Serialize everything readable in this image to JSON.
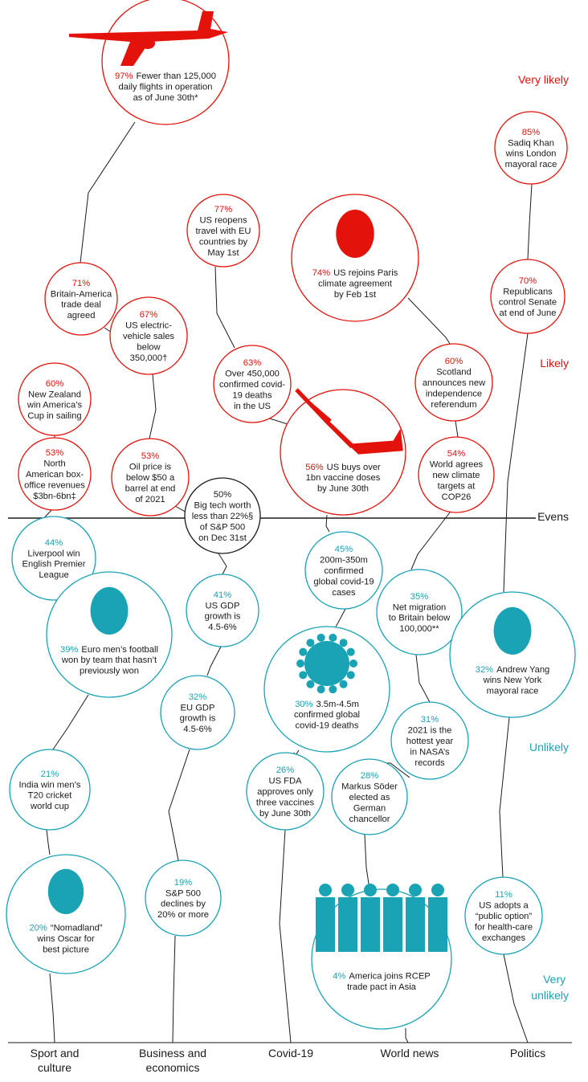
{
  "scale_labels": {
    "very_likely": "Very likely",
    "likely": "Likely",
    "evens": "Evens",
    "unlikely": "Unlikely",
    "very_unlikely": [
      "Very",
      "unlikely"
    ]
  },
  "categories": [
    [
      "Sport and",
      "culture"
    ],
    [
      "Business and",
      "economics"
    ],
    [
      "Covid-19"
    ],
    [
      "World news"
    ],
    [
      "Politics"
    ]
  ],
  "colors": {
    "likely": "#e3120b",
    "unlikely": "#1aa3b5",
    "evens": "#1a1a1a"
  },
  "chart_data": {
    "type": "bubble-timeline",
    "series": [
      {
        "name": "Sport and culture",
        "points": [
          {
            "percent": "60%",
            "lines": [
              "New Zealand",
              "win America’s",
              "Cup in sailing"
            ]
          },
          {
            "percent": "53%",
            "lines": [
              "North",
              "American box-",
              "office revenues",
              "$3bn-6bn‡"
            ]
          },
          {
            "percent": "44%",
            "lines": [
              "Liverpool win",
              "English Premier",
              "League"
            ]
          },
          {
            "percent": "39%",
            "lines": [
              "Euro men’s football",
              "won by team that hasn’t",
              "previously won"
            ],
            "photo": "face"
          },
          {
            "percent": "21%",
            "lines": [
              "India win men’s",
              "T20 cricket",
              "world cup"
            ]
          },
          {
            "percent": "20%",
            "lines": [
              "“Nomadland”",
              "wins Oscar for",
              "best picture"
            ],
            "photo": "face"
          }
        ]
      },
      {
        "name": "Business and economics",
        "points": [
          {
            "percent": "97%",
            "lines": [
              "Fewer than 125,000",
              "daily flights in operation",
              "as of June 30th*"
            ],
            "photo": "airplane"
          },
          {
            "percent": "71%",
            "lines": [
              "Britain-America",
              "trade deal",
              "agreed"
            ]
          },
          {
            "percent": "67%",
            "lines": [
              "US electric-",
              "vehicle sales",
              "below",
              "350,000†"
            ]
          },
          {
            "percent": "53%",
            "lines": [
              "Oil price is",
              "below $50 a",
              "barrel at end",
              "of 2021"
            ]
          },
          {
            "percent": "50%",
            "lines": [
              "Big tech worth",
              "less than 22%§",
              "of S&P 500",
              "on Dec 31st"
            ]
          },
          {
            "percent": "41%",
            "lines": [
              "US GDP",
              "growth is",
              "4.5-6%"
            ]
          },
          {
            "percent": "32%",
            "lines": [
              "EU GDP",
              "growth is",
              "4.5-6%"
            ]
          },
          {
            "percent": "19%",
            "lines": [
              "S&P 500",
              "declines by",
              "20% or more"
            ]
          }
        ]
      },
      {
        "name": "Covid-19",
        "points": [
          {
            "percent": "77%",
            "lines": [
              "US reopens",
              "travel with EU",
              "countries by",
              "May 1st"
            ]
          },
          {
            "percent": "63%",
            "lines": [
              "Over 450,000",
              "confirmed covid-",
              "19 deaths",
              "in the US"
            ]
          },
          {
            "percent": "56%",
            "lines": [
              "US buys over",
              "1bn vaccine doses",
              "by June 30th"
            ],
            "photo": "syringe"
          },
          {
            "percent": "45%",
            "lines": [
              "200m-350m",
              "confirmed",
              "global covid-19",
              "cases"
            ]
          },
          {
            "percent": "30%",
            "lines": [
              "3.5m-4.5m",
              "confirmed global",
              "covid-19 deaths"
            ],
            "photo": "virus"
          },
          {
            "percent": "26%",
            "lines": [
              "US FDA",
              "approves only",
              "three vaccines",
              "by June 30th"
            ]
          }
        ]
      },
      {
        "name": "World news",
        "points": [
          {
            "percent": "74%",
            "lines": [
              "US rejoins Paris",
              "climate agreement",
              "by Feb 1st"
            ],
            "photo": "face"
          },
          {
            "percent": "60%",
            "lines": [
              "Scotland",
              "announces new",
              "independence",
              "referendum"
            ]
          },
          {
            "percent": "54%",
            "lines": [
              "World agrees",
              "new climate",
              "targets at",
              "COP26"
            ]
          },
          {
            "percent": "35%",
            "lines": [
              "Net migration",
              "to Britain below",
              "100,000**"
            ]
          },
          {
            "percent": "31%",
            "lines": [
              "2021 is the",
              "hottest year",
              "in NASA’s",
              "records"
            ]
          },
          {
            "percent": "28%",
            "lines": [
              "Markus Söder",
              "elected as",
              "German",
              "chancellor"
            ]
          },
          {
            "percent": "4%",
            "lines": [
              "America joins RCEP",
              "trade pact in Asia"
            ],
            "photo": "group"
          }
        ]
      },
      {
        "name": "Politics",
        "points": [
          {
            "percent": "85%",
            "lines": [
              "Sadiq Khan",
              "wins London",
              "mayoral race"
            ]
          },
          {
            "percent": "70%",
            "lines": [
              "Republicans",
              "control Senate",
              "at end of June"
            ]
          },
          {
            "percent": "32%",
            "lines": [
              "Andrew Yang",
              "wins New York",
              "mayoral race"
            ],
            "photo": "face"
          },
          {
            "percent": "11%",
            "lines": [
              "US adopts a",
              "“public option”",
              "for health-care",
              "exchanges"
            ]
          }
        ]
      }
    ]
  }
}
